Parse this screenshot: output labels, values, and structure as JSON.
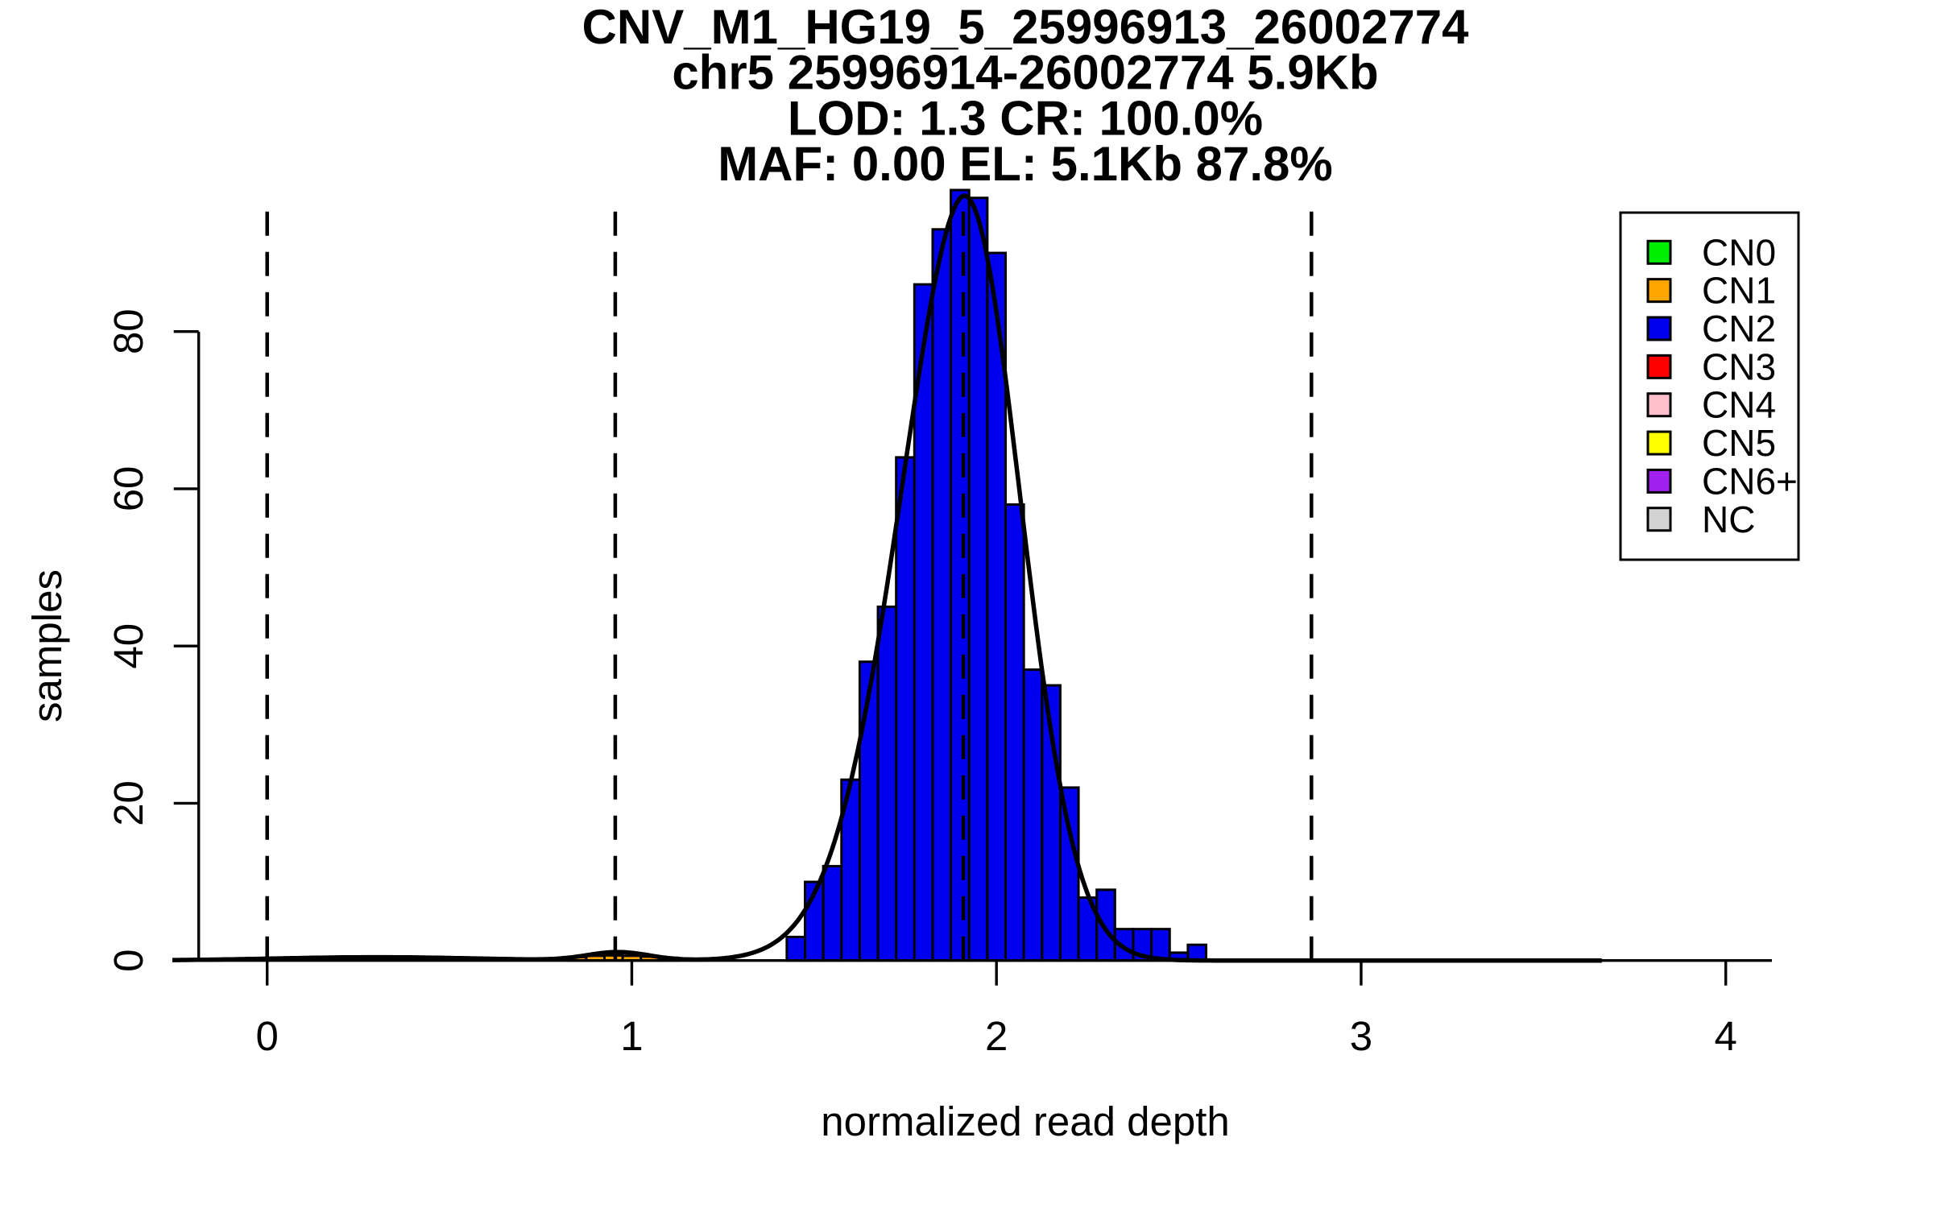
{
  "figure": {
    "background": "#FFFFFF",
    "title_lines": [
      "CNV_M1_HG19_5_25996913_26002774",
      "chr5 25996914-26002774 5.9Kb",
      "LOD: 1.3 CR: 100.0%",
      "MAF: 0.00 EL: 5.1Kb 87.8%"
    ],
    "xlabel": "normalized read depth",
    "ylabel": "samples"
  },
  "chart_data": {
    "type": "bar",
    "subtype": "histogram_with_density_curve",
    "title": "CNV_M1_HG19_5_25996913_26002774",
    "subtitle_lines": [
      "chr5 25996914-26002774 5.9Kb",
      "LOD: 1.3 CR: 100.0%",
      "MAF: 0.00 EL: 5.1Kb 87.8%"
    ],
    "xlabel": "normalized read depth",
    "ylabel": "samples",
    "x_ticks": [
      0,
      1,
      2,
      3,
      4
    ],
    "y_ticks": [
      0,
      20,
      40,
      60,
      80
    ],
    "xlim": [
      -0.19,
      4.35
    ],
    "ylim": [
      0,
      97.7
    ],
    "bin_width": 0.05,
    "series": [
      {
        "name": "CN2",
        "color": "#0000EE",
        "bin_start": 1.425,
        "counts": [
          3,
          10,
          12,
          23,
          38,
          45,
          64,
          86,
          93,
          98,
          97,
          90,
          58,
          37,
          35,
          22,
          8,
          9,
          4,
          4,
          4,
          1,
          2
        ]
      },
      {
        "name": "CN1",
        "color": "#FFA500",
        "bin_start": 0.825,
        "counts": [
          0.45,
          0.6,
          0.65,
          0.6,
          0.5,
          0.35
        ]
      }
    ],
    "dashed_guides_x": [
      0,
      0.9546,
      1.9092,
      2.8638
    ],
    "density_curve": {
      "color": "#000000",
      "x_min": -0.26,
      "x_max": 3.66,
      "main": {
        "mean": 1.912,
        "amp": 97.3,
        "sd_left": 0.175,
        "p_left": 1.85,
        "sd_right": 0.153,
        "p_right": 2.0
      },
      "components": [
        {
          "mean": 0.963,
          "sd": 0.085,
          "amp": 1.05
        },
        {
          "mean": 0.3,
          "sd": 0.28,
          "amp": 0.42
        }
      ]
    },
    "legend": {
      "items": [
        {
          "label": "CN0",
          "color": "#00EE00"
        },
        {
          "label": "CN1",
          "color": "#FFA500"
        },
        {
          "label": "CN2",
          "color": "#0000EE"
        },
        {
          "label": "CN3",
          "color": "#FF0000"
        },
        {
          "label": "CN4",
          "color": "#FFC0CB"
        },
        {
          "label": "CN5",
          "color": "#FFFF00"
        },
        {
          "label": "CN6+",
          "color": "#A020F0"
        },
        {
          "label": "NC",
          "color": "#D3D3D3"
        }
      ]
    }
  }
}
